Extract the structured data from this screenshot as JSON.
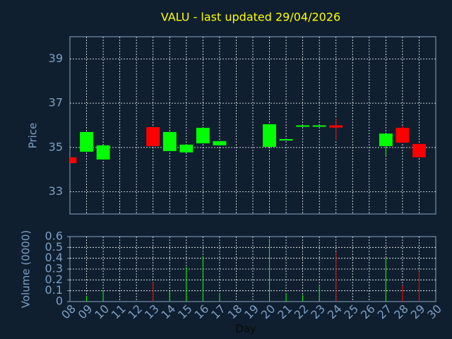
{
  "chart_data": {
    "type": "candlestick",
    "title": "VALU - last updated 29/04/2026",
    "ylabel": "Price",
    "volume_ylabel": "Volume (0000)",
    "xlabel": "Day",
    "categories": [
      "08",
      "09",
      "10",
      "11",
      "12",
      "13",
      "14",
      "15",
      "16",
      "17",
      "18",
      "19",
      "20",
      "21",
      "22",
      "23",
      "24",
      "25",
      "26",
      "27",
      "28",
      "29",
      "30"
    ],
    "open": [
      34.56,
      34.81,
      34.46,
      null,
      null,
      35.92,
      34.84,
      34.78,
      35.19,
      35.1,
      null,
      null,
      35.03,
      35.33,
      35.98,
      35.98,
      36.0,
      null,
      null,
      35.06,
      35.89,
      35.16,
      null
    ],
    "high": [
      34.56,
      35.7,
      35.1,
      null,
      null,
      35.92,
      35.7,
      35.13,
      35.89,
      35.29,
      null,
      null,
      36.05,
      35.38,
      36.0,
      36.0,
      36.3,
      null,
      null,
      35.63,
      35.98,
      35.16,
      null
    ],
    "low": [
      34.3,
      34.81,
      34.46,
      null,
      null,
      35.06,
      34.84,
      34.78,
      35.19,
      35.1,
      null,
      null,
      35.03,
      35.33,
      35.98,
      35.98,
      35.35,
      null,
      null,
      34.65,
      35.22,
      34.56,
      null
    ],
    "close": [
      34.3,
      35.7,
      35.1,
      null,
      null,
      35.06,
      35.7,
      35.13,
      35.89,
      35.29,
      null,
      null,
      36.05,
      35.38,
      36.0,
      36.0,
      35.9,
      null,
      null,
      35.63,
      35.22,
      34.56,
      null
    ],
    "volume": [
      0,
      0.05,
      0.1,
      null,
      null,
      0.18,
      0.09,
      0.32,
      0.42,
      0.08,
      null,
      null,
      0.58,
      0.08,
      0.06,
      0.14,
      0.46,
      null,
      null,
      0.4,
      0.15,
      0.28,
      null
    ],
    "up_color": "#00ff00",
    "down_color": "#ff0000",
    "title_color": "#ffff00",
    "ylim": [
      32,
      40
    ],
    "yticks": [
      33,
      35,
      37,
      39
    ],
    "volume_ylim": [
      0,
      0.6
    ],
    "volume_yticks": [
      0,
      0.1,
      0.2,
      0.3,
      0.4,
      0.5,
      0.6
    ],
    "grid": true
  }
}
